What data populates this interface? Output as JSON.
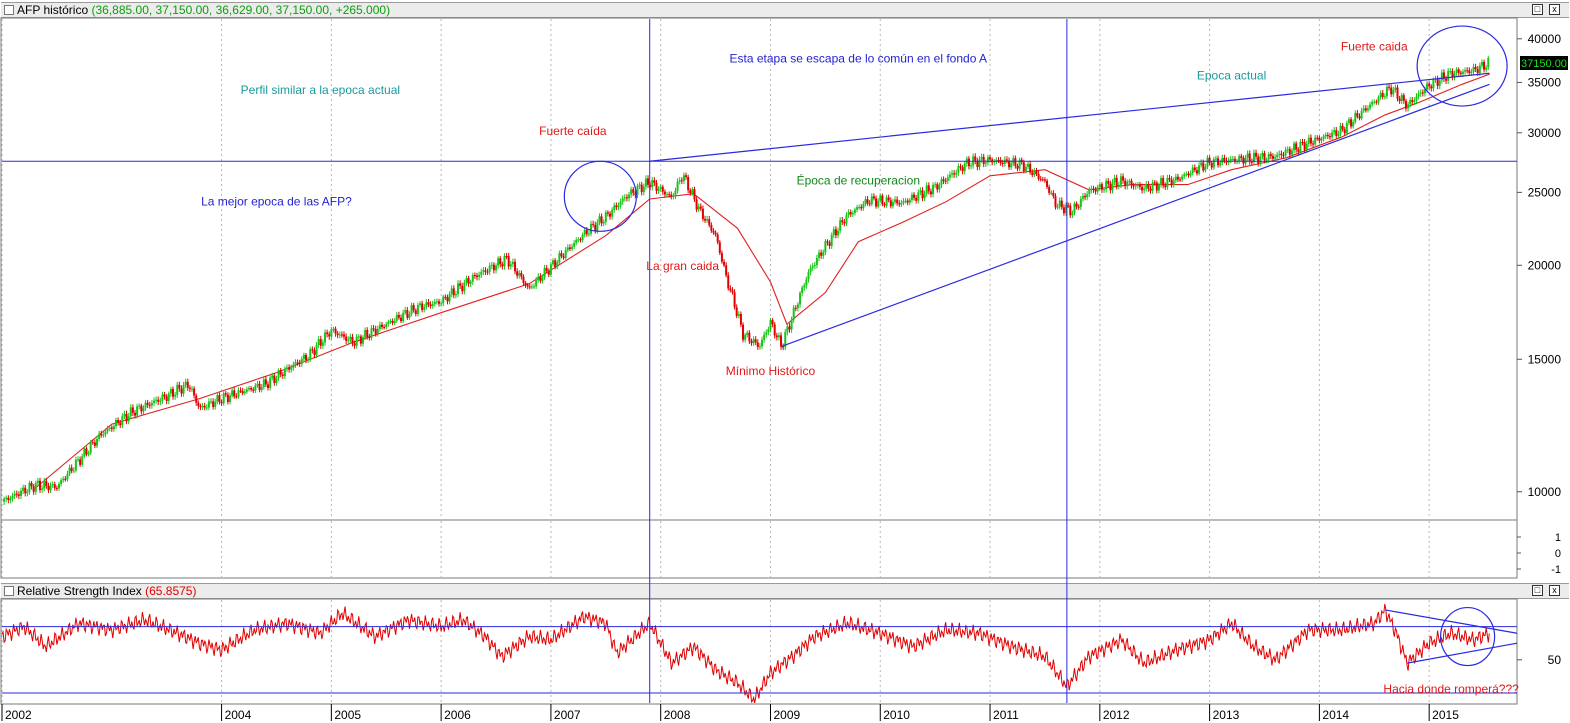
{
  "main_panel": {
    "title": "AFP histórico",
    "title_values": "(36,885.00, 37,150.00, 36,629.00, 37,150.00, +265.000)"
  },
  "rsi_panel": {
    "title": "Relative Strength Index",
    "title_value": "(65.8575)"
  },
  "window_buttons": {
    "restore": "□",
    "close": "x"
  },
  "colors": {
    "up": "#19c419",
    "down": "#e00000",
    "ma": "#e02020",
    "line": "#2a2ae0",
    "teal_text": "#1a9a9a",
    "green_text": "#11881a",
    "red_text": "#e01818",
    "blue_text": "#2323d0",
    "grid": "#b8b8b8",
    "price_tag_bg": "#000000",
    "price_tag_fg": "#19e019"
  },
  "chart_data": [
    {
      "type": "candlestick",
      "scale": "log",
      "x_range": [
        2002.0,
        2015.8
      ],
      "ylim": [
        9200,
        42500
      ],
      "y_ticks": [
        10000,
        15000,
        20000,
        25000,
        30000,
        35000,
        40000
      ],
      "x_ticks": [
        2002,
        2004,
        2005,
        2006,
        2007,
        2008,
        2009,
        2010,
        2011,
        2012,
        2013,
        2014,
        2015
      ],
      "grid": "vertical dotted",
      "last_price": "37150.00",
      "price_path": [
        [
          2002.0,
          9700
        ],
        [
          2002.3,
          10200
        ],
        [
          2002.5,
          10150
        ],
        [
          2002.7,
          11000
        ],
        [
          2002.9,
          11900
        ],
        [
          2003.2,
          12800
        ],
        [
          2003.5,
          13400
        ],
        [
          2003.7,
          13900
        ],
        [
          2003.8,
          12900
        ],
        [
          2004.0,
          13300
        ],
        [
          2004.4,
          13900
        ],
        [
          2004.8,
          15200
        ],
        [
          2005.0,
          16400
        ],
        [
          2005.2,
          15800
        ],
        [
          2005.5,
          16700
        ],
        [
          2005.8,
          17600
        ],
        [
          2006.0,
          17900
        ],
        [
          2006.3,
          19300
        ],
        [
          2006.6,
          20400
        ],
        [
          2006.8,
          18600
        ],
        [
          2007.0,
          19900
        ],
        [
          2007.3,
          22000
        ],
        [
          2007.5,
          23200
        ],
        [
          2007.7,
          24800
        ],
        [
          2007.9,
          25800
        ],
        [
          2008.1,
          24600
        ],
        [
          2008.2,
          26400
        ],
        [
          2008.35,
          23700
        ],
        [
          2008.5,
          21900
        ],
        [
          2008.6,
          19200
        ],
        [
          2008.75,
          16200
        ],
        [
          2008.9,
          15600
        ],
        [
          2009.0,
          16800
        ],
        [
          2009.1,
          15600
        ],
        [
          2009.2,
          17100
        ],
        [
          2009.35,
          19600
        ],
        [
          2009.5,
          21200
        ],
        [
          2009.7,
          23300
        ],
        [
          2009.9,
          24400
        ],
        [
          2010.2,
          24200
        ],
        [
          2010.5,
          25400
        ],
        [
          2010.8,
          27400
        ],
        [
          2011.0,
          27600
        ],
        [
          2011.3,
          27200
        ],
        [
          2011.5,
          25800
        ],
        [
          2011.6,
          24100
        ],
        [
          2011.75,
          23600
        ],
        [
          2011.9,
          25100
        ],
        [
          2012.2,
          25900
        ],
        [
          2012.4,
          25300
        ],
        [
          2012.7,
          26000
        ],
        [
          2013.0,
          27400
        ],
        [
          2013.3,
          27700
        ],
        [
          2013.6,
          27900
        ],
        [
          2013.9,
          29100
        ],
        [
          2014.2,
          30200
        ],
        [
          2014.5,
          33000
        ],
        [
          2014.65,
          34400
        ],
        [
          2014.8,
          32600
        ],
        [
          2015.0,
          34700
        ],
        [
          2015.2,
          36000
        ],
        [
          2015.4,
          36300
        ],
        [
          2015.55,
          37150
        ]
      ],
      "ma_path": [
        [
          2002.3,
          10100
        ],
        [
          2003.0,
          12300
        ],
        [
          2003.8,
          13300
        ],
        [
          2004.5,
          14400
        ],
        [
          2005.2,
          15800
        ],
        [
          2006.0,
          17300
        ],
        [
          2006.8,
          18900
        ],
        [
          2007.5,
          21900
        ],
        [
          2007.9,
          24500
        ],
        [
          2008.3,
          24900
        ],
        [
          2008.7,
          22400
        ],
        [
          2009.0,
          19000
        ],
        [
          2009.15,
          16700
        ],
        [
          2009.5,
          18400
        ],
        [
          2009.8,
          21500
        ],
        [
          2010.2,
          22800
        ],
        [
          2010.6,
          24300
        ],
        [
          2011.0,
          26300
        ],
        [
          2011.5,
          26800
        ],
        [
          2011.9,
          25200
        ],
        [
          2012.3,
          25600
        ],
        [
          2012.8,
          25600
        ],
        [
          2013.2,
          26800
        ],
        [
          2013.7,
          27800
        ],
        [
          2014.2,
          29600
        ],
        [
          2014.6,
          31700
        ],
        [
          2014.9,
          32900
        ],
        [
          2015.3,
          34800
        ],
        [
          2015.55,
          35900
        ]
      ],
      "trend_lines": [
        {
          "from": [
            2007.9,
            27500
          ],
          "to": [
            2015.55,
            36000
          ]
        },
        {
          "from": [
            2009.1,
            15600
          ],
          "to": [
            2015.55,
            34800
          ]
        }
      ],
      "h_lines": [
        27500
      ],
      "v_lines": [
        2007.9,
        2011.7
      ],
      "circles": [
        {
          "center": [
            2007.45,
            24700
          ],
          "label": ""
        },
        {
          "center": [
            2015.3,
            36800
          ],
          "label": ""
        }
      ],
      "annotations": [
        {
          "text": "Perfil similar a la epoca actual",
          "at": [
            2004.9,
            33800
          ],
          "color": "teal_text"
        },
        {
          "text": "Fuerte caída",
          "at": [
            2007.2,
            29800
          ],
          "color": "red_text"
        },
        {
          "text": "La mejor epoca de las AFP?",
          "at": [
            2004.5,
            24000
          ],
          "color": "blue_text"
        },
        {
          "text": "Esta etapa se escapa de lo común en el fondo A",
          "at": [
            2009.8,
            37200
          ],
          "color": "blue_text"
        },
        {
          "text": "Época de recuperacion",
          "at": [
            2009.8,
            25600
          ],
          "color": "green_text"
        },
        {
          "text": "La gran caida",
          "at": [
            2008.2,
            19700
          ],
          "color": "red_text"
        },
        {
          "text": "Mínimo Histórico",
          "at": [
            2009.0,
            14300
          ],
          "color": "red_text"
        },
        {
          "text": "Epoca actual",
          "at": [
            2013.2,
            35300
          ],
          "color": "teal_text"
        },
        {
          "text": "Fuerte caida",
          "at": [
            2014.5,
            38600
          ],
          "color": "red_text"
        }
      ]
    },
    {
      "type": "line",
      "name": "Relative Strength Index",
      "ylim": [
        24,
        86
      ],
      "y_ticks": [
        50
      ],
      "h_lines": [
        70,
        30
      ],
      "v_lines": [
        2007.9,
        2011.7
      ],
      "rsi_path": [
        [
          2002.0,
          64
        ],
        [
          2002.2,
          70
        ],
        [
          2002.4,
          58
        ],
        [
          2002.7,
          72
        ],
        [
          2003.0,
          68
        ],
        [
          2003.3,
          74
        ],
        [
          2003.6,
          66
        ],
        [
          2003.8,
          60
        ],
        [
          2004.0,
          56
        ],
        [
          2004.3,
          68
        ],
        [
          2004.6,
          72
        ],
        [
          2004.9,
          66
        ],
        [
          2005.1,
          78
        ],
        [
          2005.4,
          64
        ],
        [
          2005.7,
          74
        ],
        [
          2006.0,
          70
        ],
        [
          2006.2,
          74
        ],
        [
          2006.4,
          64
        ],
        [
          2006.55,
          52
        ],
        [
          2006.8,
          64
        ],
        [
          2007.0,
          62
        ],
        [
          2007.3,
          76
        ],
        [
          2007.5,
          72
        ],
        [
          2007.6,
          54
        ],
        [
          2007.9,
          72
        ],
        [
          2008.1,
          48
        ],
        [
          2008.3,
          58
        ],
        [
          2008.5,
          44
        ],
        [
          2008.7,
          36
        ],
        [
          2008.85,
          26
        ],
        [
          2009.0,
          42
        ],
        [
          2009.2,
          52
        ],
        [
          2009.4,
          64
        ],
        [
          2009.7,
          72
        ],
        [
          2010.0,
          66
        ],
        [
          2010.3,
          58
        ],
        [
          2010.6,
          68
        ],
        [
          2010.9,
          66
        ],
        [
          2011.2,
          58
        ],
        [
          2011.5,
          52
        ],
        [
          2011.7,
          34
        ],
        [
          2011.9,
          52
        ],
        [
          2012.2,
          62
        ],
        [
          2012.4,
          48
        ],
        [
          2012.7,
          56
        ],
        [
          2013.0,
          62
        ],
        [
          2013.2,
          72
        ],
        [
          2013.4,
          58
        ],
        [
          2013.6,
          50
        ],
        [
          2013.9,
          68
        ],
        [
          2014.2,
          68
        ],
        [
          2014.5,
          72
        ],
        [
          2014.6,
          80
        ],
        [
          2014.7,
          66
        ],
        [
          2014.8,
          48
        ],
        [
          2015.0,
          60
        ],
        [
          2015.2,
          66
        ],
        [
          2015.4,
          62
        ],
        [
          2015.55,
          66
        ]
      ],
      "trend_lines": [
        {
          "from": [
            2014.6,
            80
          ],
          "to": [
            2015.8,
            66
          ]
        },
        {
          "from": [
            2014.8,
            48
          ],
          "to": [
            2015.8,
            60
          ]
        }
      ],
      "circles": [
        {
          "center": [
            2015.35,
            64
          ],
          "label": ""
        }
      ],
      "annotations": [
        {
          "text": "Hacia donde romperá???",
          "at": [
            2015.2,
            30
          ],
          "color": "red_text"
        }
      ]
    }
  ],
  "middle_panel": {
    "y_ticks": [
      "1",
      "0",
      "-1"
    ]
  }
}
